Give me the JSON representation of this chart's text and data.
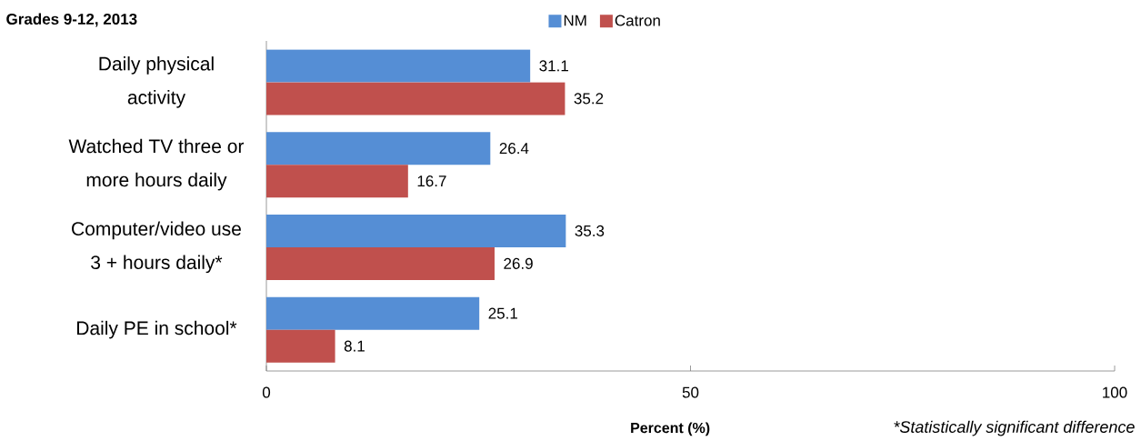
{
  "chart_data": {
    "type": "bar",
    "orientation": "horizontal",
    "title": "Grades 9-12, 2013",
    "categories": [
      "Daily physical activity",
      "Watched TV three or more hours daily",
      "Computer/video use 3 + hours daily*",
      "Daily PE in school*"
    ],
    "series": [
      {
        "name": "NM",
        "color": "#558ed5",
        "values": [
          31.1,
          26.4,
          35.3,
          25.1
        ]
      },
      {
        "name": "Catron",
        "color": "#c0504d",
        "values": [
          35.2,
          16.7,
          26.9,
          8.1
        ]
      }
    ],
    "xlabel": "Percent (%)",
    "xlim": [
      0,
      100
    ],
    "xticks": [
      0,
      50,
      100
    ],
    "data_labels": true,
    "legend": "top",
    "grid": false,
    "annotations": [
      "*Statistically significant difference"
    ]
  }
}
